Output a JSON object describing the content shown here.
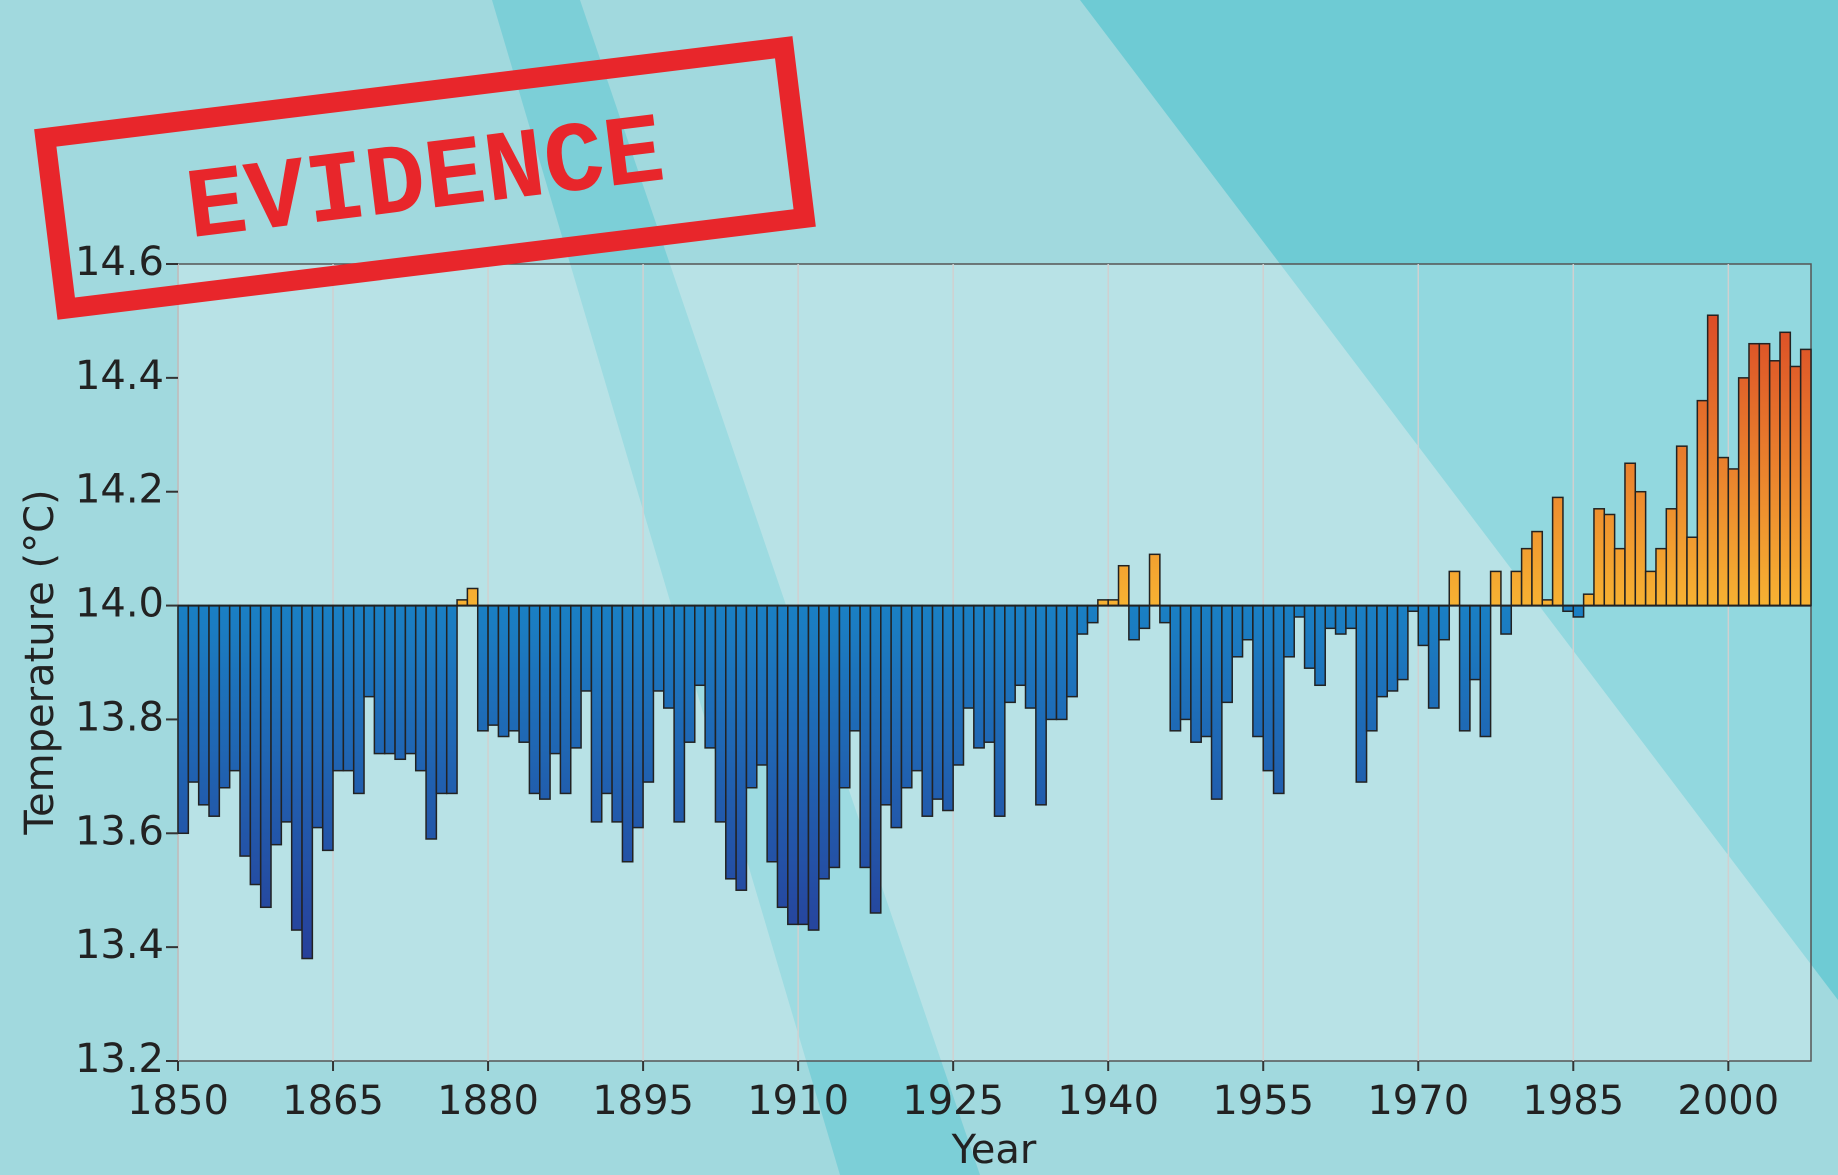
{
  "stamp": "EVIDENCE",
  "chart_data": {
    "type": "bar",
    "x_label": "Year",
    "y_label": "Temperature (°C)",
    "x": [
      1850,
      1851,
      1852,
      1853,
      1854,
      1855,
      1856,
      1857,
      1858,
      1859,
      1860,
      1861,
      1862,
      1863,
      1864,
      1865,
      1866,
      1867,
      1868,
      1869,
      1870,
      1871,
      1872,
      1873,
      1874,
      1875,
      1876,
      1877,
      1878,
      1879,
      1880,
      1881,
      1882,
      1883,
      1884,
      1885,
      1886,
      1887,
      1888,
      1889,
      1890,
      1891,
      1892,
      1893,
      1894,
      1895,
      1896,
      1897,
      1898,
      1899,
      1900,
      1901,
      1902,
      1903,
      1904,
      1905,
      1906,
      1907,
      1908,
      1909,
      1910,
      1911,
      1912,
      1913,
      1914,
      1915,
      1916,
      1917,
      1918,
      1919,
      1920,
      1921,
      1922,
      1923,
      1924,
      1925,
      1926,
      1927,
      1928,
      1929,
      1930,
      1931,
      1932,
      1933,
      1934,
      1935,
      1936,
      1937,
      1938,
      1939,
      1940,
      1941,
      1942,
      1943,
      1944,
      1945,
      1946,
      1947,
      1948,
      1949,
      1950,
      1951,
      1952,
      1953,
      1954,
      1955,
      1956,
      1957,
      1958,
      1959,
      1960,
      1961,
      1962,
      1963,
      1964,
      1965,
      1966,
      1967,
      1968,
      1969,
      1970,
      1971,
      1972,
      1973,
      1974,
      1975,
      1976,
      1977,
      1978,
      1979,
      1980,
      1981,
      1982,
      1983,
      1984,
      1985,
      1986,
      1987,
      1988,
      1989,
      1990,
      1991,
      1992,
      1993,
      1994,
      1995,
      1996,
      1997,
      1998,
      1999,
      2000,
      2001,
      2002,
      2003,
      2004,
      2005,
      2006,
      2007
    ],
    "values": [
      13.6,
      13.69,
      13.65,
      13.63,
      13.68,
      13.71,
      13.56,
      13.51,
      13.47,
      13.58,
      13.62,
      13.43,
      13.38,
      13.61,
      13.57,
      13.71,
      13.71,
      13.67,
      13.84,
      13.74,
      13.74,
      13.73,
      13.74,
      13.71,
      13.59,
      13.67,
      13.67,
      14.01,
      14.03,
      13.78,
      13.79,
      13.77,
      13.78,
      13.76,
      13.67,
      13.66,
      13.74,
      13.67,
      13.75,
      13.85,
      13.62,
      13.67,
      13.62,
      13.55,
      13.61,
      13.69,
      13.85,
      13.82,
      13.62,
      13.76,
      13.86,
      13.75,
      13.62,
      13.52,
      13.5,
      13.68,
      13.72,
      13.55,
      13.47,
      13.44,
      13.44,
      13.43,
      13.52,
      13.54,
      13.68,
      13.78,
      13.54,
      13.46,
      13.65,
      13.61,
      13.68,
      13.71,
      13.63,
      13.66,
      13.64,
      13.72,
      13.82,
      13.75,
      13.76,
      13.63,
      13.83,
      13.86,
      13.82,
      13.65,
      13.8,
      13.8,
      13.84,
      13.95,
      13.97,
      14.01,
      14.01,
      14.07,
      13.94,
      13.96,
      14.09,
      13.97,
      13.78,
      13.8,
      13.76,
      13.77,
      13.66,
      13.83,
      13.91,
      13.94,
      13.77,
      13.71,
      13.67,
      13.91,
      13.98,
      13.89,
      13.86,
      13.96,
      13.95,
      13.96,
      13.69,
      13.78,
      13.84,
      13.85,
      13.87,
      13.99,
      13.93,
      13.82,
      13.94,
      14.06,
      13.78,
      13.87,
      13.77,
      14.06,
      13.95,
      14.06,
      14.1,
      14.13,
      14.01,
      14.19,
      13.99,
      13.98,
      14.02,
      14.17,
      14.16,
      14.1,
      14.25,
      14.2,
      14.06,
      14.1,
      14.17,
      14.28,
      14.12,
      14.36,
      14.51,
      14.26,
      14.24,
      14.4,
      14.46,
      14.46,
      14.43,
      14.48,
      14.42,
      14.45
    ],
    "baseline": 14,
    "negative_colors": [
      "#1a80c4",
      "#2b2d8e"
    ],
    "positive_colors": [
      "#f7b232",
      "#d63a25"
    ],
    "xlim": [
      1850,
      2008
    ],
    "xticks": [
      1850,
      1865,
      1880,
      1895,
      1910,
      1925,
      1940,
      1955,
      1970,
      1985,
      2000
    ],
    "ylim": [
      13.2,
      14.6
    ],
    "yticks": [
      13.2,
      13.4,
      13.6,
      13.8,
      {
        "value": 14,
        "label": "14.0"
      },
      14.2,
      14.4,
      14.6
    ],
    "grid": true
  }
}
